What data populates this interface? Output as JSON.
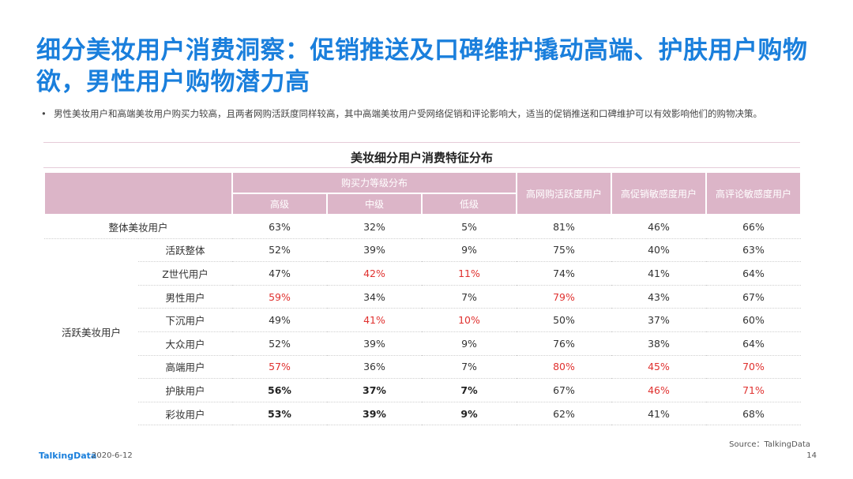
{
  "title": "细分美妆用户消费洞察：促销推送及口碑维护撬动高端、护肤用户购物欲，男性用户购物潜力高",
  "bullet": "男性美妆用户和高端美妆用户购买力较高，且两者网购活跃度同样较高，其中高端美妆用户受网络促销和评论影响大，适当的促销推送和口碑维护可以有效影响他们的购物决策。",
  "table": {
    "title": "美妆细分用户消费特征分布",
    "group_header": "购买力等级分布",
    "sub_headers": [
      "高级",
      "中级",
      "低级"
    ],
    "headers": [
      "高网购活跃度用户",
      "高促销敏感度用户",
      "高评论敏感度用户"
    ],
    "overall_label": "整体美妆用户",
    "group_label": "活跃美妆用户",
    "rows": [
      {
        "label": "整体美妆用户",
        "cells": [
          "63%",
          "32%",
          "5%",
          "81%",
          "46%",
          "66%"
        ],
        "red": [],
        "bold": []
      },
      {
        "label": "活跃整体",
        "cells": [
          "52%",
          "39%",
          "9%",
          "75%",
          "40%",
          "63%"
        ],
        "red": [],
        "bold": []
      },
      {
        "label": "Z世代用户",
        "cells": [
          "47%",
          "42%",
          "11%",
          "74%",
          "41%",
          "64%"
        ],
        "red": [
          1,
          2
        ],
        "bold": []
      },
      {
        "label": "男性用户",
        "cells": [
          "59%",
          "34%",
          "7%",
          "79%",
          "43%",
          "67%"
        ],
        "red": [
          0,
          3
        ],
        "bold": []
      },
      {
        "label": "下沉用户",
        "cells": [
          "49%",
          "41%",
          "10%",
          "50%",
          "37%",
          "60%"
        ],
        "red": [
          1,
          2
        ],
        "bold": []
      },
      {
        "label": "大众用户",
        "cells": [
          "52%",
          "39%",
          "9%",
          "76%",
          "38%",
          "64%"
        ],
        "red": [],
        "bold": []
      },
      {
        "label": "高端用户",
        "cells": [
          "57%",
          "36%",
          "7%",
          "80%",
          "45%",
          "70%"
        ],
        "red": [
          0,
          3,
          4,
          5
        ],
        "bold": []
      },
      {
        "label": "护肤用户",
        "cells": [
          "56%",
          "37%",
          "7%",
          "67%",
          "46%",
          "71%"
        ],
        "red": [
          4,
          5
        ],
        "bold": [
          0,
          1,
          2
        ]
      },
      {
        "label": "彩妆用户",
        "cells": [
          "53%",
          "39%",
          "9%",
          "62%",
          "41%",
          "68%"
        ],
        "red": [],
        "bold": [
          0,
          1,
          2
        ]
      }
    ]
  },
  "source": "Source：TalkingData",
  "footer": {
    "brand": "TalkingData",
    "date": "2020-6-12",
    "page": "14"
  },
  "colors": {
    "accent": "#1a7fdc",
    "header_bg": "#dcb5c8",
    "highlight": "#e0312f"
  }
}
